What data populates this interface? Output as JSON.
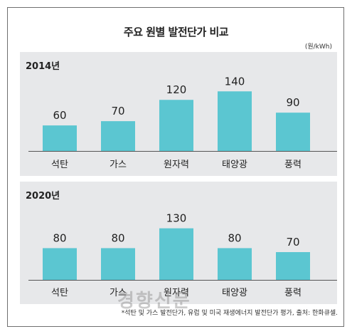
{
  "header": {
    "title": "주요 원별 발전단가 비교",
    "unit": "(원/kWh)"
  },
  "footnote": "*석탄 및 가스 발전단가, 유럽 및 미국 재생에너지 발전단가 평가, 출처: 한화큐셀.",
  "watermark": "경향신문",
  "colors": {
    "bar": "#5bc6d1",
    "panel": "#e7e8ea",
    "baseline": "#555555"
  },
  "chart_data": [
    {
      "type": "bar",
      "title": "2014년",
      "categories": [
        "석탄",
        "가스",
        "원자력",
        "태양광",
        "풍력"
      ],
      "values": [
        60,
        70,
        120,
        140,
        90
      ],
      "ylim": [
        0,
        140
      ]
    },
    {
      "type": "bar",
      "title": "2020년",
      "categories": [
        "석탄",
        "가스",
        "원자력",
        "태양광",
        "풍력"
      ],
      "values": [
        80,
        80,
        130,
        80,
        70
      ],
      "ylim": [
        0,
        130
      ]
    }
  ]
}
